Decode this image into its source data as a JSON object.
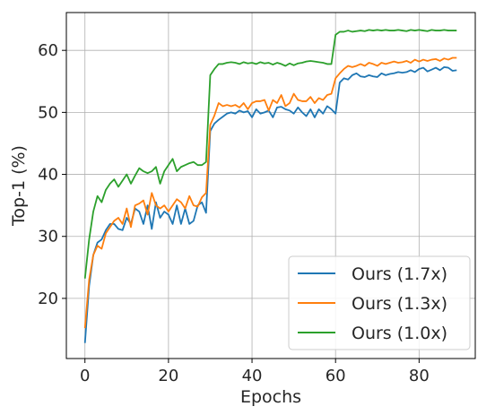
{
  "chart_data": {
    "type": "line",
    "title": "",
    "xlabel": "Epochs",
    "ylabel": "Top-1 (%)",
    "xlim": [
      -4.45,
      93.45
    ],
    "ylim": [
      10.3,
      66.1
    ],
    "xticks": [
      0,
      20,
      40,
      60,
      80
    ],
    "yticks": [
      20,
      30,
      40,
      50,
      60
    ],
    "grid": true,
    "legend_position": "bottom-right",
    "x": [
      0,
      1,
      2,
      3,
      4,
      5,
      6,
      7,
      8,
      9,
      10,
      11,
      12,
      13,
      14,
      15,
      16,
      17,
      18,
      19,
      20,
      21,
      22,
      23,
      24,
      25,
      26,
      27,
      28,
      29,
      30,
      31,
      32,
      33,
      34,
      35,
      36,
      37,
      38,
      39,
      40,
      41,
      42,
      43,
      44,
      45,
      46,
      47,
      48,
      49,
      50,
      51,
      52,
      53,
      54,
      55,
      56,
      57,
      58,
      59,
      60,
      61,
      62,
      63,
      64,
      65,
      66,
      67,
      68,
      69,
      70,
      71,
      72,
      73,
      74,
      75,
      76,
      77,
      78,
      79,
      80,
      81,
      82,
      83,
      84,
      85,
      86,
      87,
      88,
      89
    ],
    "series": [
      {
        "name": "Ours (1.7x)",
        "color": "#1f77b4",
        "values": [
          12.8,
          22.0,
          27.0,
          29.0,
          29.5,
          31.0,
          32.0,
          32.0,
          31.2,
          31.0,
          33.0,
          32.0,
          34.5,
          34.0,
          32.0,
          35.0,
          31.2,
          35.5,
          33.0,
          34.0,
          33.5,
          32.0,
          35.0,
          32.0,
          34.5,
          32.0,
          32.5,
          35.0,
          35.5,
          33.8,
          47.0,
          48.2,
          48.8,
          49.3,
          49.8,
          50.0,
          49.8,
          50.3,
          50.0,
          50.2,
          49.2,
          50.5,
          49.8,
          50.0,
          50.3,
          49.2,
          50.8,
          50.9,
          50.5,
          50.3,
          49.8,
          50.8,
          50.0,
          49.4,
          50.5,
          49.2,
          50.5,
          49.8,
          51.0,
          50.5,
          49.8,
          54.8,
          55.5,
          55.3,
          56.0,
          56.3,
          55.8,
          55.7,
          56.0,
          55.8,
          55.7,
          56.3,
          56.0,
          56.2,
          56.3,
          56.5,
          56.4,
          56.5,
          56.8,
          56.5,
          57.0,
          57.2,
          56.6,
          56.9,
          57.2,
          56.8,
          57.3,
          57.2,
          56.7,
          56.8
        ]
      },
      {
        "name": "Ours (1.3x)",
        "color": "#ff7f0e",
        "values": [
          15.2,
          23.0,
          27.0,
          28.5,
          28.0,
          30.5,
          31.5,
          32.5,
          33.0,
          32.0,
          34.5,
          31.5,
          35.0,
          35.3,
          35.8,
          33.5,
          37.0,
          35.0,
          34.5,
          35.0,
          34.0,
          35.0,
          36.0,
          35.5,
          34.5,
          36.5,
          35.0,
          34.8,
          36.3,
          37.0,
          48.0,
          49.5,
          51.5,
          51.0,
          51.2,
          51.0,
          51.2,
          50.8,
          51.5,
          50.5,
          51.5,
          51.8,
          51.8,
          52.0,
          50.3,
          52.0,
          51.5,
          52.8,
          51.0,
          51.5,
          53.0,
          52.0,
          51.8,
          51.8,
          52.5,
          51.5,
          52.3,
          52.0,
          52.8,
          53.0,
          55.5,
          56.3,
          57.0,
          57.5,
          57.3,
          57.5,
          57.8,
          57.5,
          58.0,
          57.8,
          57.5,
          58.0,
          57.8,
          58.0,
          58.2,
          58.0,
          58.1,
          58.3,
          58.0,
          58.5,
          58.2,
          58.5,
          58.3,
          58.5,
          58.6,
          58.3,
          58.7,
          58.5,
          58.8,
          58.8
        ]
      },
      {
        "name": "Ours (1.0x)",
        "color": "#2ca02c",
        "values": [
          23.2,
          29.5,
          34.0,
          36.5,
          35.5,
          37.5,
          38.5,
          39.2,
          38.0,
          39.0,
          40.0,
          38.5,
          39.8,
          41.0,
          40.5,
          40.2,
          40.5,
          41.2,
          38.5,
          40.5,
          41.5,
          42.5,
          40.5,
          41.2,
          41.5,
          41.8,
          42.0,
          41.5,
          41.5,
          42.0,
          56.0,
          57.0,
          57.8,
          57.8,
          58.0,
          58.1,
          58.0,
          57.8,
          58.1,
          57.9,
          58.0,
          57.8,
          58.1,
          57.9,
          58.0,
          57.7,
          58.0,
          57.8,
          57.5,
          57.9,
          57.6,
          57.9,
          58.0,
          58.2,
          58.3,
          58.2,
          58.1,
          58.0,
          57.8,
          57.8,
          62.5,
          63.0,
          63.0,
          63.2,
          63.0,
          63.1,
          63.2,
          63.1,
          63.3,
          63.2,
          63.3,
          63.2,
          63.3,
          63.2,
          63.2,
          63.3,
          63.2,
          63.1,
          63.3,
          63.2,
          63.3,
          63.2,
          63.1,
          63.3,
          63.2,
          63.2,
          63.3,
          63.2,
          63.2,
          63.2
        ]
      }
    ]
  }
}
